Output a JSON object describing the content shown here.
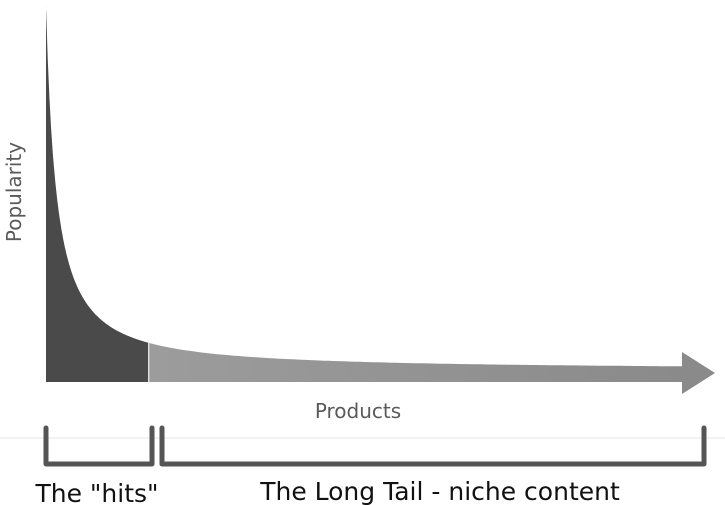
{
  "chart_data": {
    "type": "area",
    "title": "",
    "xlabel": "Products",
    "ylabel": "Popularity",
    "grid": false,
    "legend": "none",
    "regions": [
      {
        "name": "The \"hits\"",
        "color": "#4a4a4a"
      },
      {
        "name": "The Long Tail - niche content",
        "color": "#9c9c9c"
      }
    ],
    "curve": {
      "shape": "power-law decay",
      "split_fraction": 0.16
    },
    "bracket_labels": {
      "hits": "The \"hits\"",
      "long_tail": "The Long Tail - niche content"
    },
    "colors": {
      "head": "#4a4a4a",
      "tail": "#9c9c9c",
      "bracket": "#555555",
      "axis_text": "#5a5a5a",
      "label_text": "#111111"
    }
  }
}
